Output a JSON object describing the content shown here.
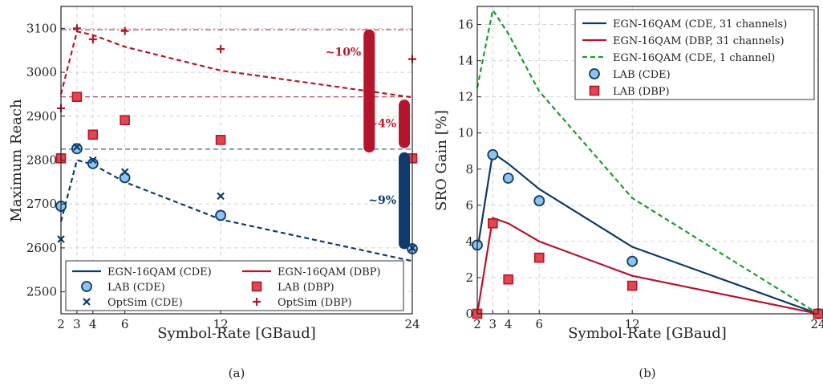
{
  "colors": {
    "blue": "#0d3a6b",
    "red": "#b5152b",
    "green": "#1a9d2c",
    "blue_fill": "#8ec3ea",
    "red_fill": "#e0474f"
  },
  "chart_data": [
    {
      "panel": "(a)",
      "type": "line",
      "xlabel": "Symbol-Rate [GBaud]",
      "ylabel": "Maximum Reach",
      "xlim": [
        2,
        24
      ],
      "ylim": [
        2450,
        3150
      ],
      "x_ticks": [
        2,
        3,
        4,
        6,
        12,
        24
      ],
      "y_ticks": [
        2500,
        2600,
        2700,
        2800,
        2900,
        3000,
        3100
      ],
      "grid": true,
      "legend_position": "bottom",
      "series": [
        {
          "name": "EGN-16QAM (CDE)",
          "style": "dashed",
          "color": "blue",
          "x": [
            2,
            3,
            4,
            6,
            12,
            24
          ],
          "y": [
            2660,
            2800,
            2790,
            2750,
            2665,
            2570
          ]
        },
        {
          "name": "EGN-16QAM (DBP)",
          "style": "dashed",
          "color": "red",
          "x": [
            2,
            3,
            4,
            6,
            12,
            24
          ],
          "y": [
            2950,
            3093,
            3085,
            3058,
            3004,
            2943
          ]
        },
        {
          "name": "LAB (CDE)",
          "marker": "circle",
          "color": "blue",
          "x": [
            2,
            3,
            4,
            6,
            12,
            24
          ],
          "y": [
            2695,
            2826,
            2792,
            2760,
            2674,
            2598
          ]
        },
        {
          "name": "LAB (DBP)",
          "marker": "square",
          "color": "red",
          "x": [
            2,
            3,
            4,
            6,
            12,
            24
          ],
          "y": [
            2804,
            2944,
            2858,
            2891,
            2846,
            2804
          ]
        },
        {
          "name": "OptSim (CDE)",
          "marker": "x",
          "color": "blue",
          "x": [
            2,
            3,
            4,
            6,
            12,
            24
          ],
          "y": [
            2620,
            2830,
            2800,
            2773,
            2718,
            2600
          ]
        },
        {
          "name": "OptSim (DBP)",
          "marker": "plus",
          "color": "red",
          "x": [
            2,
            3,
            4,
            6,
            12,
            24
          ],
          "y": [
            2918,
            3100,
            3075,
            3094,
            3053,
            3030
          ]
        }
      ],
      "reference_lines": [
        {
          "y": 3097,
          "color": "red",
          "style": "dashdot"
        },
        {
          "y": 2944,
          "color": "red",
          "style": "dashed"
        },
        {
          "y": 2825,
          "color": "blue",
          "style": "dashed"
        }
      ],
      "gain_bars": [
        {
          "label": "~10%",
          "color": "red",
          "x": 21.3,
          "y_low": 2830,
          "y_high": 3085
        },
        {
          "label": "~4%",
          "color": "red",
          "x": 23.5,
          "y_low": 2840,
          "y_high": 2925
        },
        {
          "label": "~9%",
          "color": "blue",
          "x": 23.5,
          "y_low": 2610,
          "y_high": 2805
        }
      ]
    },
    {
      "panel": "(b)",
      "type": "line",
      "xlabel": "Symbol-Rate [GBaud]",
      "ylabel": "SRO Gain [%]",
      "xlim": [
        2,
        24
      ],
      "ylim": [
        0,
        17
      ],
      "x_ticks": [
        2,
        3,
        4,
        6,
        12,
        24
      ],
      "y_ticks": [
        0,
        2,
        4,
        6,
        8,
        10,
        12,
        14,
        16
      ],
      "grid": true,
      "legend_position": "top-right",
      "series": [
        {
          "name": "EGN-16QAM (CDE, 31 channels)",
          "style": "solid",
          "color": "blue",
          "x": [
            2,
            3,
            4,
            6,
            12,
            24
          ],
          "y": [
            3.5,
            8.9,
            8.3,
            6.9,
            3.7,
            0
          ]
        },
        {
          "name": "EGN-16QAM (DBP, 31 channels)",
          "style": "solid",
          "color": "red",
          "x": [
            2,
            3,
            4,
            6,
            12,
            24
          ],
          "y": [
            0,
            5.3,
            5.0,
            4.0,
            2.1,
            0
          ]
        },
        {
          "name": "EGN-16QAM (CDE, 1 channel)",
          "style": "dashed",
          "color": "green",
          "x": [
            2,
            3,
            4,
            6,
            12,
            24
          ],
          "y": [
            12.5,
            16.8,
            15.5,
            12.3,
            6.4,
            0
          ]
        },
        {
          "name": "LAB (CDE)",
          "marker": "circle",
          "color": "blue",
          "x": [
            2,
            3,
            4,
            6,
            12,
            24
          ],
          "y": [
            3.8,
            8.8,
            7.5,
            6.25,
            2.9,
            0
          ]
        },
        {
          "name": "LAB (DBP)",
          "marker": "square",
          "color": "red",
          "x": [
            2,
            3,
            4,
            6,
            12,
            24
          ],
          "y": [
            0,
            5.0,
            1.9,
            3.1,
            1.55,
            0
          ]
        }
      ]
    }
  ],
  "captions": {
    "a": "(a)",
    "b": "(b)"
  }
}
